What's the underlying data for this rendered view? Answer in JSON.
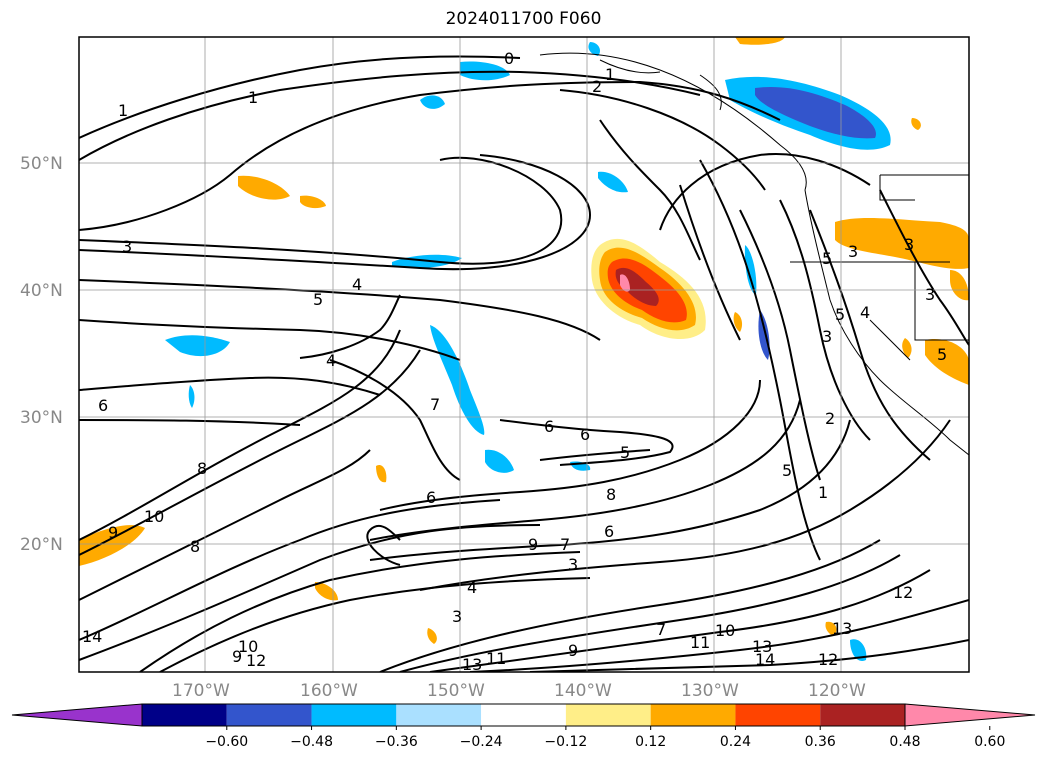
{
  "title": "2024011700 F060",
  "map": {
    "lat_labels": [
      "50°N",
      "40°N",
      "30°N",
      "20°N"
    ],
    "lon_labels": [
      "170°W",
      "160°W",
      "150°W",
      "140°W",
      "130°W",
      "120°W"
    ],
    "contour_labels": [
      "0",
      "1",
      "2",
      "1",
      "3",
      "4",
      "5",
      "4",
      "6",
      "7",
      "6",
      "6",
      "5",
      "6",
      "8",
      "8",
      "6",
      "9",
      "10",
      "8",
      "9",
      "7",
      "3",
      "4",
      "3",
      "7",
      "9",
      "10",
      "11",
      "12",
      "13",
      "14",
      "12",
      "13",
      "10",
      "11",
      "9",
      "14",
      "12",
      "13",
      "1",
      "2",
      "3",
      "5",
      "3",
      "5",
      "3",
      "4",
      "5",
      "3",
      "5",
      "1"
    ]
  },
  "colorbar": {
    "tick_labels": [
      "−0.60",
      "−0.48",
      "−0.36",
      "−0.24",
      "−0.12",
      "0.12",
      "0.24",
      "0.36",
      "0.48",
      "0.60"
    ],
    "colors": [
      "#9933cc",
      "#000088",
      "#3355cc",
      "#00bbff",
      "#aae0ff",
      "#ffffff",
      "#ffee88",
      "#ffaa00",
      "#ff4400",
      "#aa2222",
      "#ff88aa"
    ]
  }
}
